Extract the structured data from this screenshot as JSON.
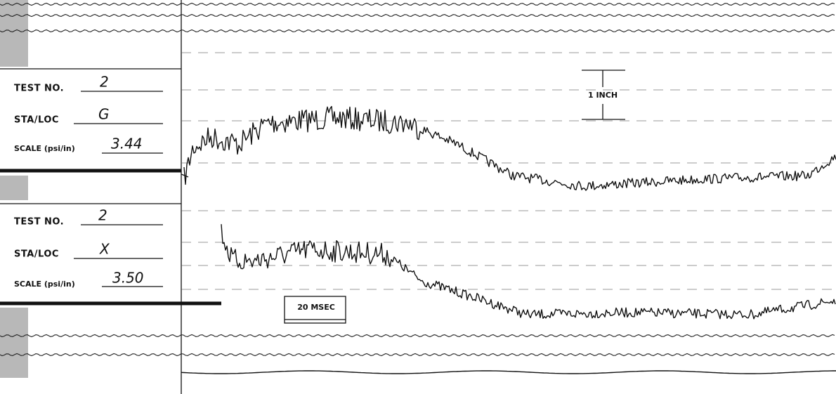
{
  "panels": [
    {
      "test_no_label": "TEST NO.",
      "test_no": "2",
      "sta_loc_label": "STA/LOC",
      "sta_loc": "G",
      "scale_label": "SCALE (psi/in)",
      "scale": "3.44"
    },
    {
      "test_no_label": "TEST NO.",
      "test_no": "2",
      "sta_loc_label": "STA/LOC",
      "sta_loc": "X",
      "scale_label": "SCALE (psi/in)",
      "scale": "3.50"
    }
  ],
  "calibration": {
    "vertical": "1 INCH",
    "time": "20 MSEC"
  }
}
